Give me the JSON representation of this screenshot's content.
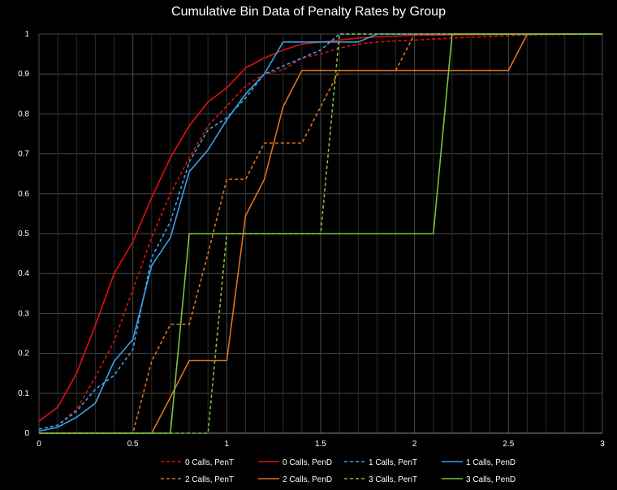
{
  "chart_data": {
    "type": "line",
    "title": "Cumulative Bin Data of Penalty Rates by Group",
    "xlabel": "",
    "ylabel": "",
    "xlim": [
      0,
      3
    ],
    "ylim": [
      0,
      1
    ],
    "xticks": [
      "0",
      "0.5",
      "1",
      "1.5",
      "2",
      "2.5",
      "3"
    ],
    "xtick_values": [
      0,
      0.5,
      1,
      1.5,
      2,
      2.5,
      3
    ],
    "yticks": [
      "0",
      "0.1",
      "0.2",
      "0.3",
      "0.4",
      "0.5",
      "0.6",
      "0.7",
      "0.8",
      "0.9",
      "1"
    ],
    "ytick_values": [
      0,
      0.1,
      0.2,
      0.3,
      0.4,
      0.5,
      0.6,
      0.7,
      0.8,
      0.9,
      1
    ],
    "grid": true,
    "legend_position": "bottom",
    "series": [
      {
        "name": "0 Calls, PenT",
        "color": "#e01010",
        "dashed": true,
        "points": [
          [
            0,
            0.01
          ],
          [
            0.1,
            0.02
          ],
          [
            0.2,
            0.06
          ],
          [
            0.3,
            0.14
          ],
          [
            0.4,
            0.23
          ],
          [
            0.5,
            0.36
          ],
          [
            0.6,
            0.49
          ],
          [
            0.7,
            0.6
          ],
          [
            0.8,
            0.69
          ],
          [
            0.9,
            0.77
          ],
          [
            1.0,
            0.82
          ],
          [
            1.1,
            0.87
          ],
          [
            1.2,
            0.9
          ],
          [
            1.3,
            0.91
          ],
          [
            1.4,
            0.94
          ],
          [
            1.5,
            0.95
          ],
          [
            1.6,
            0.965
          ],
          [
            1.7,
            0.975
          ],
          [
            1.8,
            0.98
          ],
          [
            1.9,
            0.983
          ],
          [
            2.0,
            0.985
          ],
          [
            2.2,
            0.99
          ],
          [
            2.6,
            0.998
          ],
          [
            3.0,
            1.0
          ]
        ]
      },
      {
        "name": "0 Calls, PenD",
        "color": "#e01010",
        "dashed": false,
        "points": [
          [
            0,
            0.03
          ],
          [
            0.1,
            0.065
          ],
          [
            0.2,
            0.15
          ],
          [
            0.3,
            0.27
          ],
          [
            0.4,
            0.4
          ],
          [
            0.5,
            0.48
          ],
          [
            0.6,
            0.59
          ],
          [
            0.7,
            0.69
          ],
          [
            0.8,
            0.77
          ],
          [
            0.9,
            0.83
          ],
          [
            1.0,
            0.865
          ],
          [
            1.1,
            0.915
          ],
          [
            1.2,
            0.94
          ],
          [
            1.3,
            0.96
          ],
          [
            1.4,
            0.975
          ],
          [
            1.5,
            0.98
          ],
          [
            1.6,
            0.985
          ],
          [
            1.7,
            0.99
          ],
          [
            1.8,
            0.993
          ],
          [
            1.9,
            0.995
          ],
          [
            2.0,
            0.997
          ],
          [
            2.5,
            0.999
          ],
          [
            3.0,
            1.0
          ]
        ]
      },
      {
        "name": "1 Calls, PenT",
        "color": "#3aa0e8",
        "dashed": true,
        "points": [
          [
            0,
            0.01
          ],
          [
            0.1,
            0.02
          ],
          [
            0.2,
            0.055
          ],
          [
            0.3,
            0.11
          ],
          [
            0.4,
            0.145
          ],
          [
            0.5,
            0.21
          ],
          [
            0.6,
            0.44
          ],
          [
            0.7,
            0.53
          ],
          [
            0.8,
            0.68
          ],
          [
            0.9,
            0.76
          ],
          [
            1.0,
            0.79
          ],
          [
            1.1,
            0.84
          ],
          [
            1.2,
            0.9
          ],
          [
            1.3,
            0.92
          ],
          [
            1.4,
            0.94
          ],
          [
            1.5,
            0.96
          ],
          [
            1.6,
            1.0
          ],
          [
            3.0,
            1.0
          ]
        ]
      },
      {
        "name": "1 Calls, PenD",
        "color": "#3aa0e8",
        "dashed": false,
        "points": [
          [
            0,
            0.005
          ],
          [
            0.1,
            0.015
          ],
          [
            0.2,
            0.04
          ],
          [
            0.3,
            0.075
          ],
          [
            0.4,
            0.18
          ],
          [
            0.5,
            0.235
          ],
          [
            0.6,
            0.42
          ],
          [
            0.7,
            0.49
          ],
          [
            0.8,
            0.655
          ],
          [
            0.9,
            0.71
          ],
          [
            1.0,
            0.785
          ],
          [
            1.1,
            0.85
          ],
          [
            1.2,
            0.9
          ],
          [
            1.3,
            0.98
          ],
          [
            1.4,
            0.98
          ],
          [
            1.5,
            0.98
          ],
          [
            1.6,
            0.98
          ],
          [
            1.7,
            0.98
          ],
          [
            1.8,
            1.0
          ],
          [
            3.0,
            1.0
          ]
        ]
      },
      {
        "name": "2 Calls, PenT",
        "color": "#e07020",
        "dashed": true,
        "points": [
          [
            0,
            0
          ],
          [
            0.5,
            0
          ],
          [
            0.6,
            0.18
          ],
          [
            0.7,
            0.273
          ],
          [
            0.8,
            0.273
          ],
          [
            0.9,
            0.45
          ],
          [
            1.0,
            0.636
          ],
          [
            1.1,
            0.636
          ],
          [
            1.2,
            0.727
          ],
          [
            1.3,
            0.727
          ],
          [
            1.4,
            0.727
          ],
          [
            1.5,
            0.818
          ],
          [
            1.6,
            0.909
          ],
          [
            1.7,
            0.909
          ],
          [
            1.8,
            0.909
          ],
          [
            1.9,
            0.909
          ],
          [
            2.0,
            1.0
          ],
          [
            3.0,
            1.0
          ]
        ]
      },
      {
        "name": "2 Calls, PenD",
        "color": "#e07020",
        "dashed": false,
        "points": [
          [
            0,
            0
          ],
          [
            0.6,
            0
          ],
          [
            0.7,
            0.09
          ],
          [
            0.8,
            0.182
          ],
          [
            0.9,
            0.182
          ],
          [
            1.0,
            0.182
          ],
          [
            1.1,
            0.545
          ],
          [
            1.2,
            0.636
          ],
          [
            1.3,
            0.818
          ],
          [
            1.4,
            0.909
          ],
          [
            1.5,
            0.909
          ],
          [
            1.6,
            0.909
          ],
          [
            2.0,
            0.909
          ],
          [
            2.5,
            0.909
          ],
          [
            2.6,
            1.0
          ],
          [
            3.0,
            1.0
          ]
        ]
      },
      {
        "name": "3 Calls, PenT",
        "color": "#7cc040",
        "dashed": true,
        "points": [
          [
            0,
            0
          ],
          [
            0.9,
            0
          ],
          [
            1.0,
            0.5
          ],
          [
            1.5,
            0.5
          ],
          [
            1.6,
            1.0
          ],
          [
            3.0,
            1.0
          ]
        ]
      },
      {
        "name": "3 Calls, PenD",
        "color": "#7cc040",
        "dashed": false,
        "points": [
          [
            0,
            0
          ],
          [
            0.7,
            0
          ],
          [
            0.8,
            0.5
          ],
          [
            2.1,
            0.5
          ],
          [
            2.2,
            1.0
          ],
          [
            3.0,
            1.0
          ]
        ]
      }
    ]
  }
}
